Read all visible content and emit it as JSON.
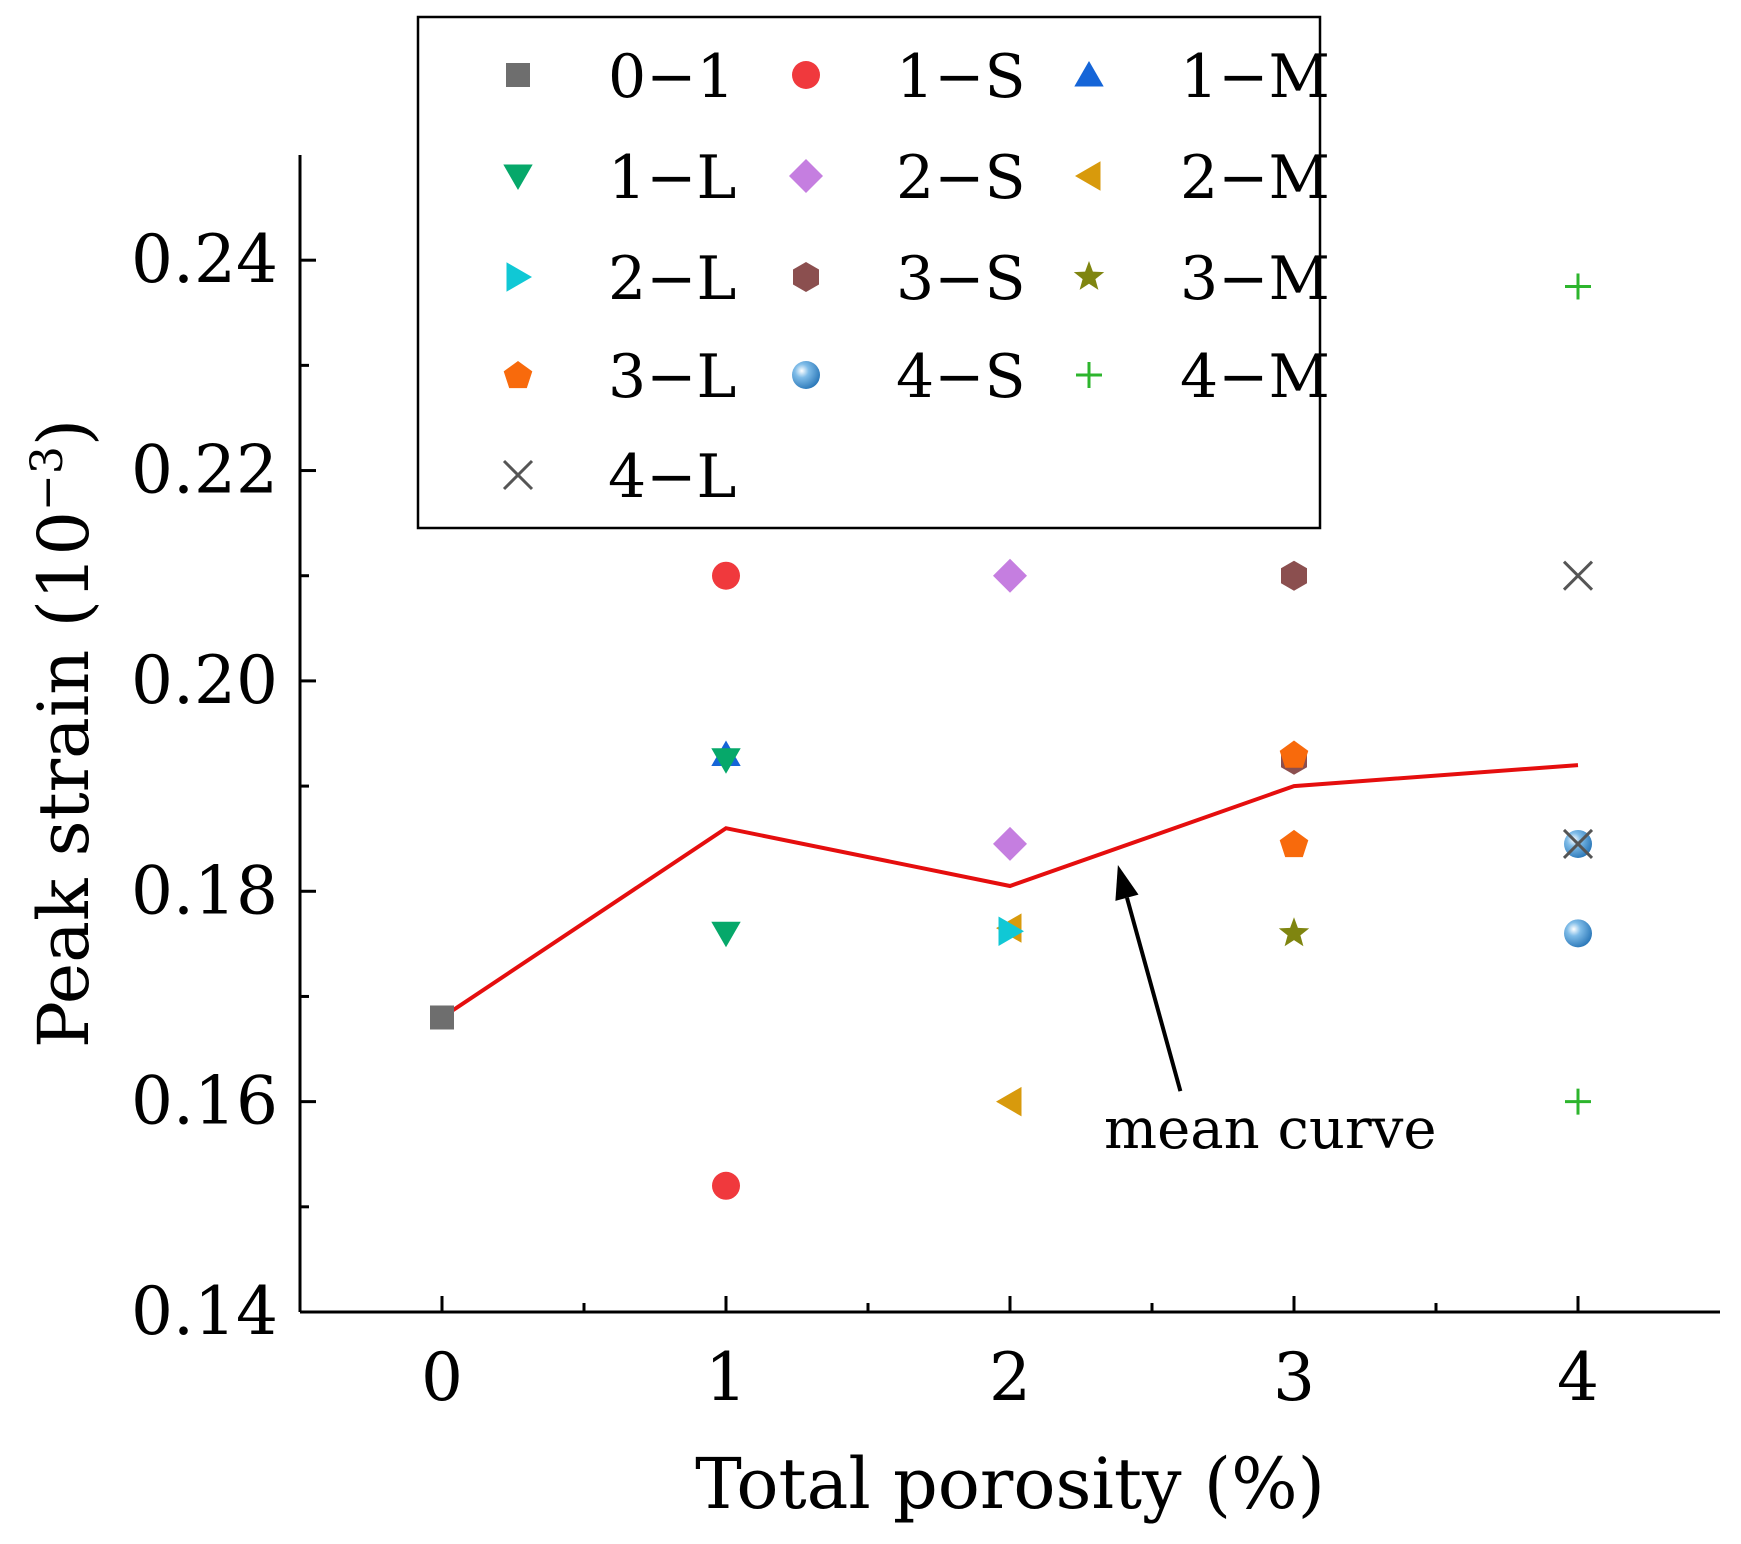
{
  "chart_data": {
    "type": "scatter",
    "xlabel": "Total porosity (%)",
    "ylabel": "Peak strain (10",
    "ylabel_sup": "−3",
    "ylabel_close": ")",
    "xlim": [
      -0.5,
      4.5
    ],
    "ylim": [
      0.14,
      0.25
    ],
    "xticks": [
      0,
      1,
      2,
      3,
      4
    ],
    "xtick_labels": [
      "0",
      "1",
      "2",
      "3",
      "4"
    ],
    "yticks": [
      0.14,
      0.16,
      0.18,
      0.2,
      0.22,
      0.24
    ],
    "ytick_labels": [
      "0.14",
      "0.16",
      "0.18",
      "0.20",
      "0.22",
      "0.24"
    ],
    "series": [
      {
        "name": "0−1",
        "marker": "square",
        "color": "#6e6e6e",
        "points": [
          [
            0,
            0.168
          ]
        ]
      },
      {
        "name": "1−S",
        "marker": "circle",
        "color": "#f0393d",
        "points": [
          [
            1,
            0.21
          ],
          [
            1,
            0.152
          ]
        ]
      },
      {
        "name": "1−M",
        "marker": "triangle-up",
        "color": "#1565d8",
        "points": [
          [
            1,
            0.193
          ]
        ]
      },
      {
        "name": "1−L",
        "marker": "triangle-down",
        "color": "#06a86a",
        "points": [
          [
            1,
            0.1925
          ],
          [
            1,
            0.176
          ]
        ]
      },
      {
        "name": "2−S",
        "marker": "diamond",
        "color": "#c57ee0",
        "points": [
          [
            2,
            0.21
          ],
          [
            2,
            0.1845
          ]
        ]
      },
      {
        "name": "2−M",
        "marker": "triangle-left",
        "color": "#d89a0c",
        "points": [
          [
            2,
            0.1765
          ],
          [
            2,
            0.16
          ]
        ]
      },
      {
        "name": "2−L",
        "marker": "triangle-right",
        "color": "#10c8d5",
        "points": [
          [
            2,
            0.1762
          ]
        ]
      },
      {
        "name": "3−S",
        "marker": "hexagon",
        "color": "#8b4f4f",
        "points": [
          [
            3,
            0.21
          ],
          [
            3,
            0.1925
          ]
        ]
      },
      {
        "name": "3−M",
        "marker": "star",
        "color": "#7f8510",
        "points": [
          [
            3,
            0.176
          ]
        ]
      },
      {
        "name": "3−L",
        "marker": "pentagon",
        "color": "#f86a0c",
        "points": [
          [
            3,
            0.193
          ],
          [
            3,
            0.1845
          ]
        ]
      },
      {
        "name": "4−S",
        "marker": "sphere",
        "color": "#3d8fd0",
        "points": [
          [
            4,
            0.1845
          ],
          [
            4,
            0.176
          ]
        ]
      },
      {
        "name": "4−M",
        "marker": "plus",
        "color": "#2db52d",
        "points": [
          [
            4,
            0.2375
          ],
          [
            4,
            0.16
          ]
        ]
      },
      {
        "name": "4−L",
        "marker": "x",
        "color": "#555555",
        "points": [
          [
            4,
            0.21
          ],
          [
            4,
            0.1845
          ]
        ]
      }
    ],
    "mean_curve": {
      "name": "mean curve",
      "color": "#e50e0e",
      "x": [
        0,
        1,
        2,
        3,
        4
      ],
      "y": [
        0.168,
        0.186,
        0.1805,
        0.19,
        0.192
      ]
    },
    "annotation": {
      "text": "mean curve",
      "arrow_to": [
        2.38,
        0.1825
      ],
      "arrow_from": [
        2.6,
        0.161
      ]
    },
    "legend": {
      "placement": "top-left",
      "columns": 3,
      "frame": true
    }
  }
}
